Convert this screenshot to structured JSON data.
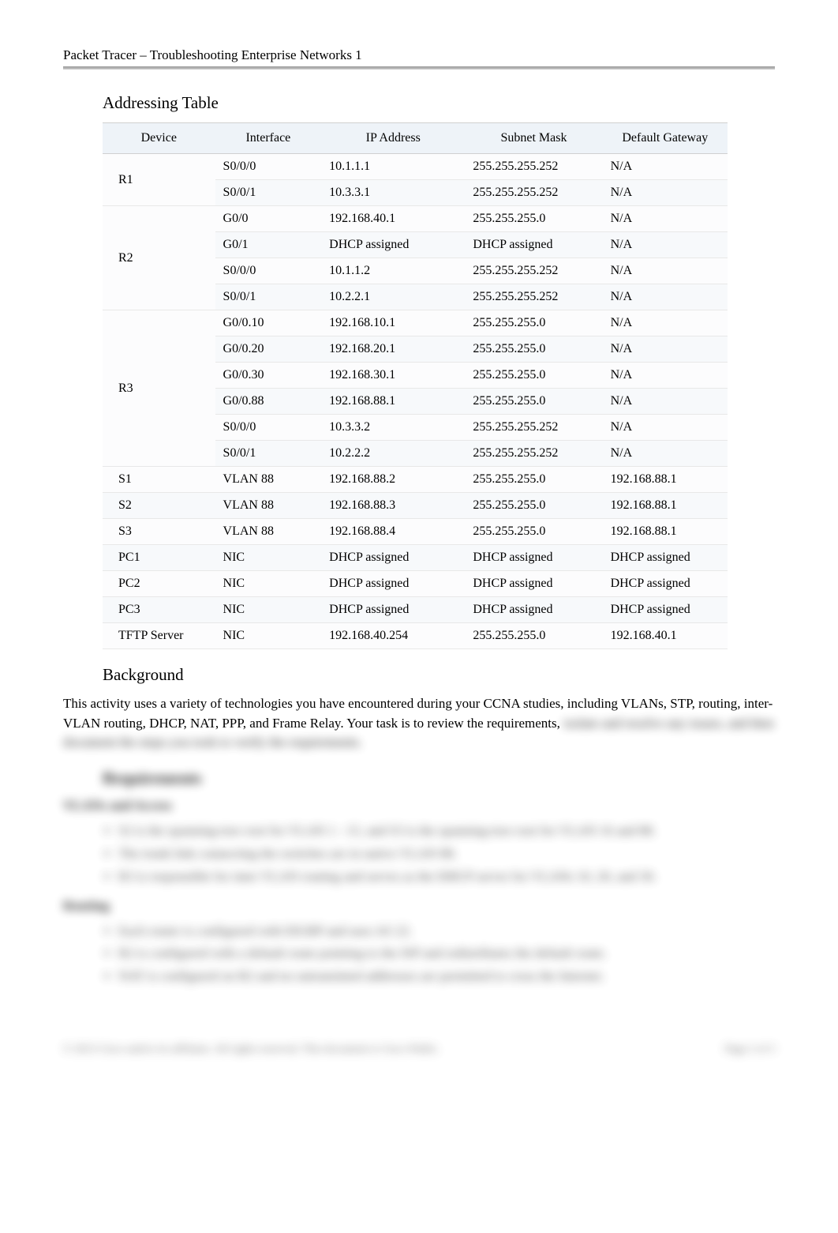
{
  "header": {
    "title": "Packet Tracer – Troubleshooting Enterprise Networks 1"
  },
  "sections": {
    "addressing_title": "Addressing Table",
    "background_title": "Background",
    "requirements_title": "Requirements"
  },
  "table": {
    "headers": [
      "Device",
      "Interface",
      "IP Address",
      "Subnet Mask",
      "Default Gateway"
    ],
    "rows": [
      {
        "device": "R1",
        "rowspan": 2,
        "iface": "S0/0/0",
        "ip": "10.1.1.1",
        "mask": "255.255.255.252",
        "gw": "N/A"
      },
      {
        "device": "",
        "rowspan": 0,
        "iface": "S0/0/1",
        "ip": "10.3.3.1",
        "mask": "255.255.255.252",
        "gw": "N/A"
      },
      {
        "device": "R2",
        "rowspan": 4,
        "iface": "G0/0",
        "ip": "192.168.40.1",
        "mask": "255.255.255.0",
        "gw": "N/A"
      },
      {
        "device": "",
        "rowspan": 0,
        "iface": "G0/1",
        "ip": "DHCP assigned",
        "mask": "DHCP assigned",
        "gw": "N/A"
      },
      {
        "device": "",
        "rowspan": 0,
        "iface": "S0/0/0",
        "ip": "10.1.1.2",
        "mask": "255.255.255.252",
        "gw": "N/A"
      },
      {
        "device": "",
        "rowspan": 0,
        "iface": "S0/0/1",
        "ip": "10.2.2.1",
        "mask": "255.255.255.252",
        "gw": "N/A"
      },
      {
        "device": "R3",
        "rowspan": 6,
        "iface": "G0/0.10",
        "ip": "192.168.10.1",
        "mask": "255.255.255.0",
        "gw": "N/A"
      },
      {
        "device": "",
        "rowspan": 0,
        "iface": "G0/0.20",
        "ip": "192.168.20.1",
        "mask": "255.255.255.0",
        "gw": "N/A"
      },
      {
        "device": "",
        "rowspan": 0,
        "iface": "G0/0.30",
        "ip": "192.168.30.1",
        "mask": "255.255.255.0",
        "gw": "N/A"
      },
      {
        "device": "",
        "rowspan": 0,
        "iface": "G0/0.88",
        "ip": "192.168.88.1",
        "mask": "255.255.255.0",
        "gw": "N/A"
      },
      {
        "device": "",
        "rowspan": 0,
        "iface": "S0/0/0",
        "ip": "10.3.3.2",
        "mask": "255.255.255.252",
        "gw": "N/A"
      },
      {
        "device": "",
        "rowspan": 0,
        "iface": "S0/0/1",
        "ip": "10.2.2.2",
        "mask": "255.255.255.252",
        "gw": "N/A"
      },
      {
        "device": "S1",
        "rowspan": 1,
        "iface": "VLAN 88",
        "ip": "192.168.88.2",
        "mask": "255.255.255.0",
        "gw": "192.168.88.1"
      },
      {
        "device": "S2",
        "rowspan": 1,
        "iface": "VLAN 88",
        "ip": "192.168.88.3",
        "mask": "255.255.255.0",
        "gw": "192.168.88.1"
      },
      {
        "device": "S3",
        "rowspan": 1,
        "iface": "VLAN 88",
        "ip": "192.168.88.4",
        "mask": "255.255.255.0",
        "gw": "192.168.88.1"
      },
      {
        "device": "PC1",
        "rowspan": 1,
        "iface": "NIC",
        "ip": "DHCP assigned",
        "mask": "DHCP assigned",
        "gw": "DHCP assigned"
      },
      {
        "device": "PC2",
        "rowspan": 1,
        "iface": "NIC",
        "ip": "DHCP assigned",
        "mask": "DHCP assigned",
        "gw": "DHCP assigned"
      },
      {
        "device": "PC3",
        "rowspan": 1,
        "iface": "NIC",
        "ip": "DHCP assigned",
        "mask": "DHCP assigned",
        "gw": "DHCP assigned"
      },
      {
        "device": "TFTP Server",
        "rowspan": 1,
        "iface": "NIC",
        "ip": "192.168.40.254",
        "mask": "255.255.255.0",
        "gw": "192.168.40.1"
      }
    ],
    "col_widths": [
      "18%",
      "17%",
      "23%",
      "22%",
      "20%"
    ],
    "header_bg": "#eef3f8",
    "border_color": "#e8e8e8"
  },
  "background_text": "This activity uses a variety of technologies you have encountered during your CCNA studies, including VLANs, STP, routing, inter-VLAN routing, DHCP, NAT, PPP, and Frame Relay. Your task is to review the requirements, isolate and resolve any issues, and then document the steps you took to verify the requirements.",
  "blurred_content": {
    "sub1": "VLANs and Access",
    "list1": [
      "S2 is the spanning-tree root for VLAN 1 - 15, and S3 is the spanning-tree root for VLAN 16 and 88.",
      "The trunk link connecting the switches are in native VLAN 88.",
      "R3 is responsible for inter VLAN routing and serves as the DHCP server for VLANs 10, 20, and 30."
    ],
    "sub2": "Routing",
    "list2": [
      "Each router is configured with EIGRP and uses AS 22.",
      "R2 is configured with a default route pointing to the ISP and redistributes the default route.",
      "NAT is configured on R2 and no untranslated addresses are permitted to cross the Internet."
    ]
  },
  "footer": {
    "left": "© 2013 Cisco and/or its affiliates. All rights reserved. This document is Cisco Public.",
    "right": "Page 2 of 3"
  }
}
